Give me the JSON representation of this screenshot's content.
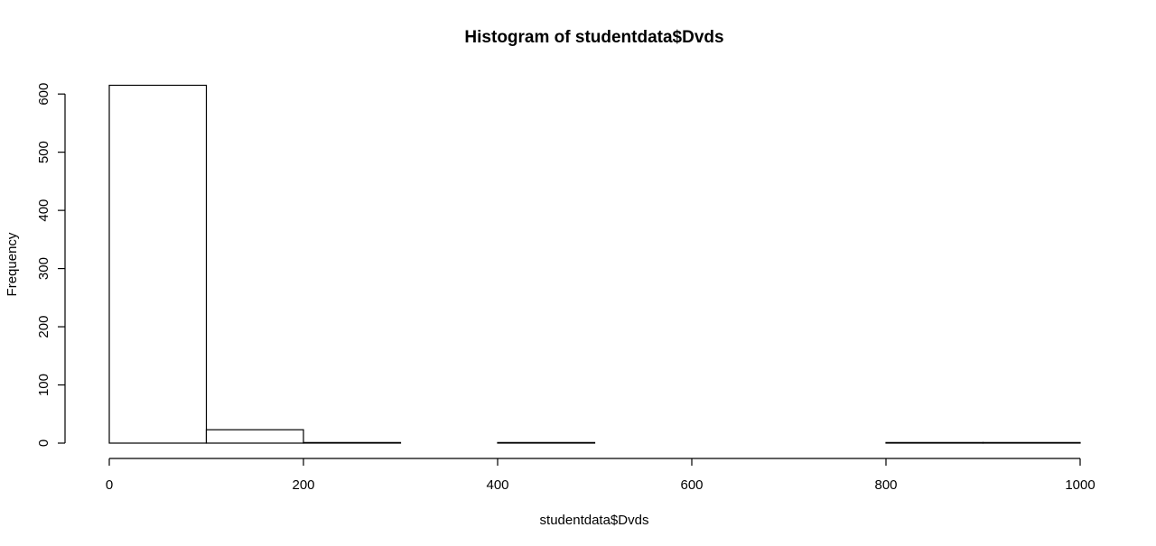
{
  "chart_data": {
    "type": "bar",
    "title": "Histogram of studentdata$Dvds",
    "xlabel": "studentdata$Dvds",
    "ylabel": "Frequency",
    "xlim": [
      0,
      1000
    ],
    "ylim": [
      0,
      615
    ],
    "x_ticks": [
      0,
      200,
      400,
      600,
      800,
      1000
    ],
    "y_ticks": [
      0,
      100,
      200,
      300,
      400,
      500,
      600
    ],
    "bins": [
      {
        "start": 0,
        "end": 100,
        "count": 615
      },
      {
        "start": 100,
        "end": 200,
        "count": 23
      },
      {
        "start": 200,
        "end": 300,
        "count": 1
      },
      {
        "start": 300,
        "end": 400,
        "count": 0
      },
      {
        "start": 400,
        "end": 500,
        "count": 1
      },
      {
        "start": 500,
        "end": 600,
        "count": 0
      },
      {
        "start": 600,
        "end": 700,
        "count": 0
      },
      {
        "start": 700,
        "end": 800,
        "count": 0
      },
      {
        "start": 800,
        "end": 900,
        "count": 1
      },
      {
        "start": 900,
        "end": 1000,
        "count": 1
      }
    ],
    "grid": false,
    "fill_color": "#ffffff",
    "stroke_color": "#000000"
  }
}
